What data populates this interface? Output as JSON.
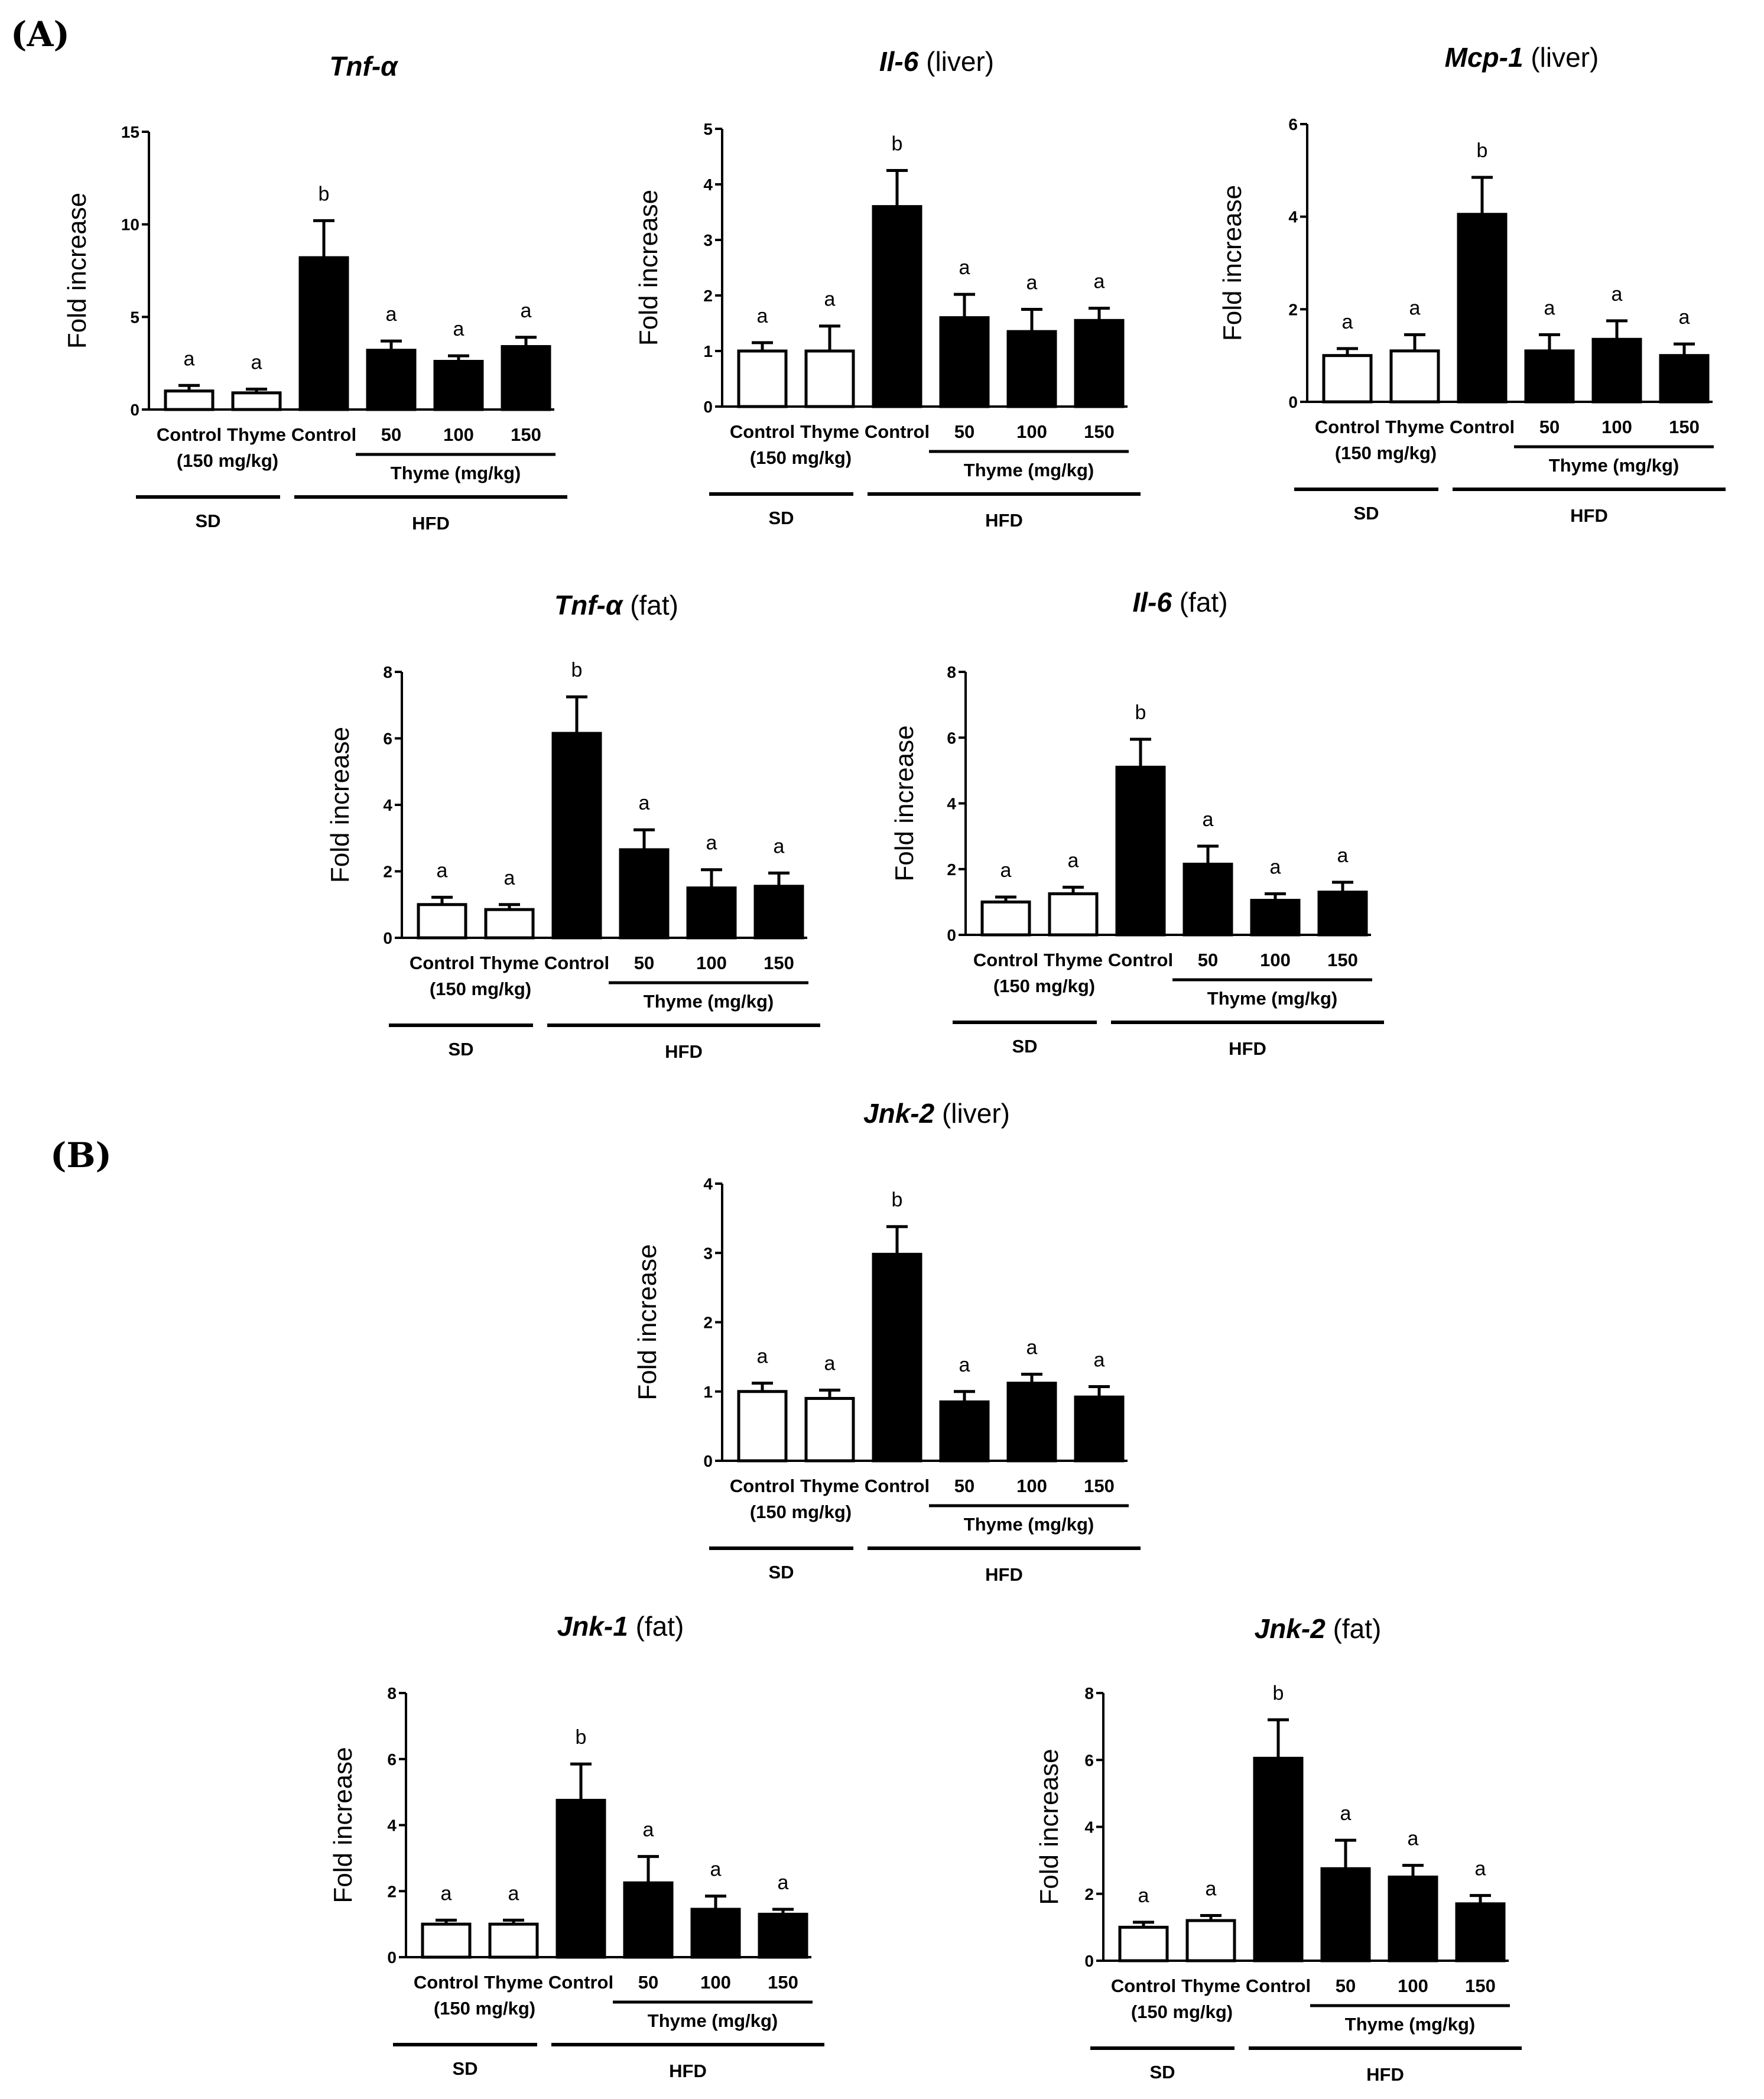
{
  "panel_labels": [
    "(A)",
    "(B)"
  ],
  "chart_data": [
    {
      "type": "bar",
      "title_italic": "Tnf-α",
      "title_rest": "",
      "ylabel": "Fold increase",
      "ylim": [
        0,
        15
      ],
      "yticks": [
        0,
        5,
        10,
        15
      ],
      "categories": [
        "Control",
        "Thyme",
        "Control",
        "50",
        "100",
        "150"
      ],
      "sublabel": "(150 mg/kg)",
      "dose_label": "Thyme (mg/kg)",
      "groups": [
        "SD",
        "HFD"
      ],
      "values": [
        1.0,
        0.9,
        8.2,
        3.2,
        2.6,
        3.4
      ],
      "errors": [
        0.3,
        0.2,
        2.0,
        0.5,
        0.3,
        0.5
      ],
      "letters": [
        "a",
        "a",
        "b",
        "a",
        "a",
        "a"
      ],
      "fills": [
        "#ffffff",
        "#ffffff",
        "#000000",
        "#000000",
        "#000000",
        "#000000"
      ]
    },
    {
      "type": "bar",
      "title_italic": "Il-6",
      "title_rest": " (liver)",
      "ylabel": "Fold increase",
      "ylim": [
        0,
        5
      ],
      "yticks": [
        0,
        1,
        2,
        3,
        4,
        5
      ],
      "categories": [
        "Control",
        "Thyme",
        "Control",
        "50",
        "100",
        "150"
      ],
      "sublabel": "(150 mg/kg)",
      "dose_label": "Thyme (mg/kg)",
      "groups": [
        "SD",
        "HFD"
      ],
      "values": [
        1.0,
        1.0,
        3.6,
        1.6,
        1.35,
        1.55
      ],
      "errors": [
        0.15,
        0.45,
        0.65,
        0.42,
        0.4,
        0.22
      ],
      "letters": [
        "a",
        "a",
        "b",
        "a",
        "a",
        "a"
      ],
      "fills": [
        "#ffffff",
        "#ffffff",
        "#000000",
        "#000000",
        "#000000",
        "#000000"
      ]
    },
    {
      "type": "bar",
      "title_italic": "Mcp-1",
      "title_rest": " (liver)",
      "ylabel": "Fold increase",
      "ylim": [
        0,
        6
      ],
      "yticks": [
        0,
        2,
        4,
        6
      ],
      "categories": [
        "Control",
        "Thyme",
        "Control",
        "50",
        "100",
        "150"
      ],
      "sublabel": "(150 mg/kg)",
      "dose_label": "Thyme (mg/kg)",
      "groups": [
        "SD",
        "HFD"
      ],
      "values": [
        1.0,
        1.1,
        4.05,
        1.1,
        1.35,
        1.0
      ],
      "errors": [
        0.15,
        0.35,
        0.8,
        0.35,
        0.4,
        0.25
      ],
      "letters": [
        "a",
        "a",
        "b",
        "a",
        "a",
        "a"
      ],
      "fills": [
        "#ffffff",
        "#ffffff",
        "#000000",
        "#000000",
        "#000000",
        "#000000"
      ]
    },
    {
      "type": "bar",
      "title_italic": "Tnf-α",
      "title_rest": " (fat)",
      "ylabel": "Fold increase",
      "ylim": [
        0,
        8
      ],
      "yticks": [
        0,
        2,
        4,
        6,
        8
      ],
      "categories": [
        "Control",
        "Thyme",
        "Control",
        "50",
        "100",
        "150"
      ],
      "sublabel": "(150 mg/kg)",
      "dose_label": "Thyme (mg/kg)",
      "groups": [
        "SD",
        "HFD"
      ],
      "values": [
        1.0,
        0.85,
        6.15,
        2.65,
        1.5,
        1.55
      ],
      "errors": [
        0.22,
        0.15,
        1.1,
        0.6,
        0.55,
        0.4
      ],
      "letters": [
        "a",
        "a",
        "b",
        "a",
        "a",
        "a"
      ],
      "fills": [
        "#ffffff",
        "#ffffff",
        "#000000",
        "#000000",
        "#000000",
        "#000000"
      ]
    },
    {
      "type": "bar",
      "title_italic": "Il-6",
      "title_rest": " (fat)",
      "ylabel": "Fold increase",
      "ylim": [
        0,
        8
      ],
      "yticks": [
        0,
        2,
        4,
        6,
        8
      ],
      "categories": [
        "Control",
        "Thyme",
        "Control",
        "50",
        "100",
        "150"
      ],
      "sublabel": "(150 mg/kg)",
      "dose_label": "Thyme (mg/kg)",
      "groups": [
        "SD",
        "HFD"
      ],
      "values": [
        1.0,
        1.25,
        5.1,
        2.15,
        1.05,
        1.3
      ],
      "errors": [
        0.15,
        0.2,
        0.85,
        0.55,
        0.2,
        0.3
      ],
      "letters": [
        "a",
        "a",
        "b",
        "a",
        "a",
        "a"
      ],
      "fills": [
        "#ffffff",
        "#ffffff",
        "#000000",
        "#000000",
        "#000000",
        "#000000"
      ]
    },
    {
      "type": "bar",
      "title_italic": "Jnk-2",
      "title_rest": " (liver)",
      "ylabel": "Fold increase",
      "ylim": [
        0,
        4
      ],
      "yticks": [
        0,
        1,
        2,
        3,
        4
      ],
      "categories": [
        "Control",
        "Thyme",
        "Control",
        "50",
        "100",
        "150"
      ],
      "sublabel": "(150 mg/kg)",
      "dose_label": "Thyme (mg/kg)",
      "groups": [
        "SD",
        "HFD"
      ],
      "values": [
        1.0,
        0.9,
        2.98,
        0.85,
        1.12,
        0.92
      ],
      "errors": [
        0.12,
        0.12,
        0.4,
        0.15,
        0.13,
        0.15
      ],
      "letters": [
        "a",
        "a",
        "b",
        "a",
        "a",
        "a"
      ],
      "fills": [
        "#ffffff",
        "#ffffff",
        "#000000",
        "#000000",
        "#000000",
        "#000000"
      ]
    },
    {
      "type": "bar",
      "title_italic": "Jnk-1",
      "title_rest": " (fat)",
      "ylabel": "Fold increase",
      "ylim": [
        0,
        8
      ],
      "yticks": [
        0,
        2,
        4,
        6,
        8
      ],
      "categories": [
        "Control",
        "Thyme",
        "Control",
        "50",
        "100",
        "150"
      ],
      "sublabel": "(150 mg/kg)",
      "dose_label": "Thyme (mg/kg)",
      "groups": [
        "SD",
        "HFD"
      ],
      "values": [
        1.0,
        1.0,
        4.75,
        2.25,
        1.45,
        1.3
      ],
      "errors": [
        0.12,
        0.12,
        1.1,
        0.8,
        0.4,
        0.15
      ],
      "letters": [
        "a",
        "a",
        "b",
        "a",
        "a",
        "a"
      ],
      "fills": [
        "#ffffff",
        "#ffffff",
        "#000000",
        "#000000",
        "#000000",
        "#000000"
      ]
    },
    {
      "type": "bar",
      "title_italic": "Jnk-2",
      "title_rest": " (fat)",
      "ylabel": "Fold increase",
      "ylim": [
        0,
        8
      ],
      "yticks": [
        0,
        2,
        4,
        6,
        8
      ],
      "categories": [
        "Control",
        "Thyme",
        "Control",
        "50",
        "100",
        "150"
      ],
      "sublabel": "(150 mg/kg)",
      "dose_label": "Thyme (mg/kg)",
      "groups": [
        "SD",
        "HFD"
      ],
      "values": [
        1.0,
        1.2,
        6.05,
        2.75,
        2.5,
        1.7
      ],
      "errors": [
        0.15,
        0.15,
        1.15,
        0.85,
        0.35,
        0.25
      ],
      "letters": [
        "a",
        "a",
        "b",
        "a",
        "a",
        "a"
      ],
      "fills": [
        "#ffffff",
        "#ffffff",
        "#000000",
        "#000000",
        "#000000",
        "#000000"
      ]
    }
  ]
}
